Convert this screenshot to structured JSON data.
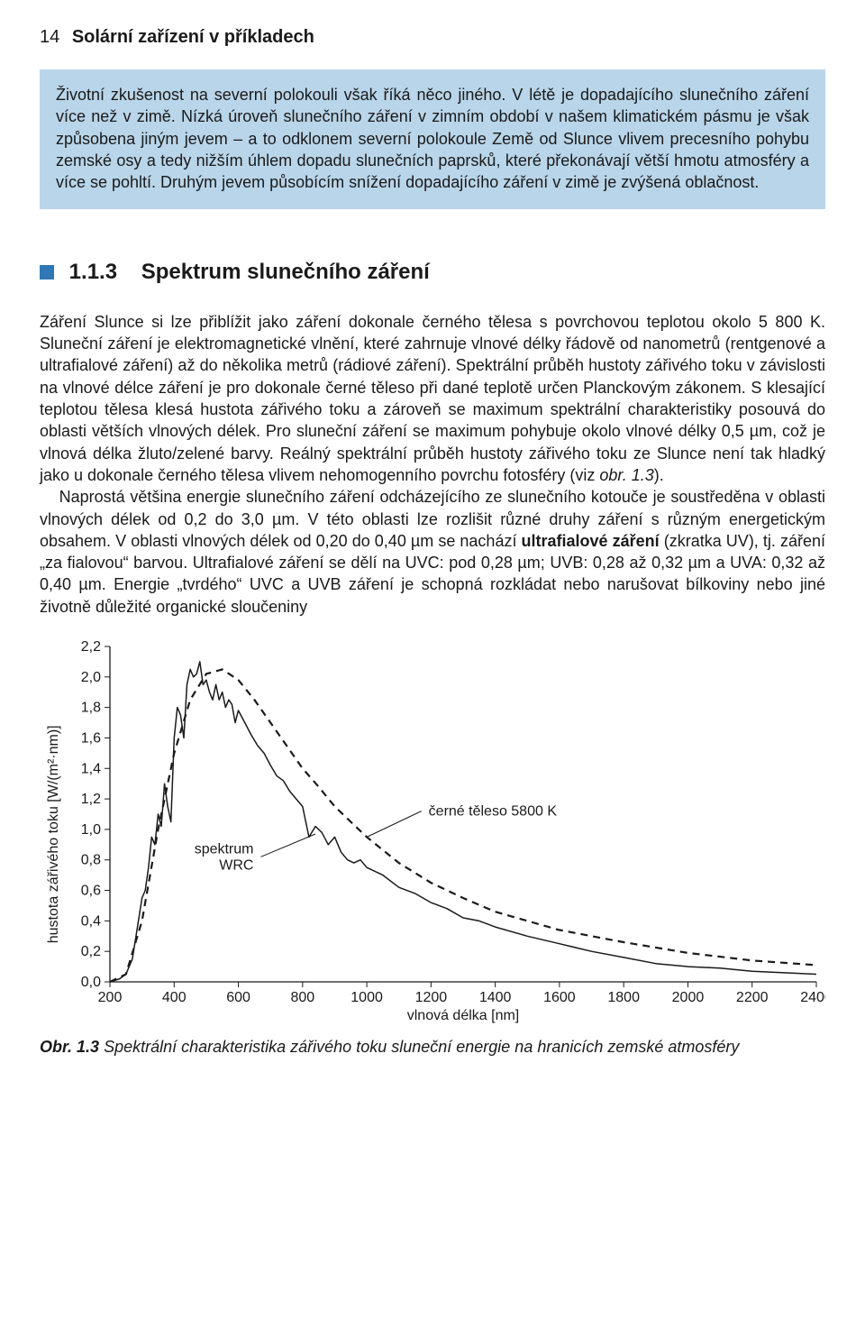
{
  "page": {
    "number": "14",
    "running_title": "Solární zařízení v příkladech"
  },
  "callout": {
    "text": "Životní zkušenost na severní polokouli však říká něco jiného. V létě je dopadajícího slunečního záření více než v zimě. Nízká úroveň slunečního záření v zimním období v našem klimatickém pásmu je však způsobena jiným jevem – a to odklonem severní polokoule Země od Slunce vlivem precesního pohybu zemské osy a tedy nižším úhlem dopadu slunečních paprsků, které překonávají větší hmotu atmosféry a více se pohltí. Druhým jevem působícím snížení dopadajícího záření v zimě je zvýšená oblačnost."
  },
  "section": {
    "number": "1.1.3",
    "title": "Spektrum slunečního záření"
  },
  "body": {
    "p1": "Záření Slunce si lze přiblížit jako záření dokonale černého tělesa s povrchovou teplotou okolo 5 800 K. Sluneční záření je elektromagnetické vlnění, které zahrnuje vlnové délky řádově od nanometrů (rentgenové a ultrafialové záření) až do několika metrů (rádiové záření). Spektrální průběh hustoty zářivého toku v závislosti na vlnové délce záření je pro dokonale černé těleso při dané teplotě určen Planckovým zákonem. S klesající teplotou tělesa klesá hustota zářivého toku a zároveň se maximum spektrální charakteristiky posouvá do oblasti větších vlnových délek. Pro sluneční záření se maximum pohybuje okolo vlnové délky 0,5 µm, což je vlnová délka žluto/zelené barvy. Reálný spektrální průběh hustoty zářivého toku ze Slunce není tak hladký jako u dokonale černého tělesa vlivem nehomogenního povrchu fotosféry (viz ",
    "figref": "obr. 1.3",
    "p1_after": ").",
    "p2_a": "Naprostá většina energie slunečního záření odcházejícího ze slunečního kotouče je soustředěna v oblasti vlnových délek od 0,2 do 3,0 µm. V této oblasti lze rozlišit různé druhy záření s různým energetickým obsahem. V oblasti vlnových délek od 0,20 do 0,40 µm se nachází ",
    "term1": "ultrafialové záření",
    "p2_b": " (zkratka UV), tj. záření „za fialovou“ barvou. Ultrafialové záření se dělí na UVC: pod 0,28 µm; UVB: 0,28 až 0,32 µm a UVA: 0,32 až 0,40 µm. Energie „tvrdého“ UVC a UVB záření je schopná rozkládat nebo narušovat bílkoviny nebo jiné životně důležité organické sloučeniny"
  },
  "figure": {
    "y_title": "hustota zářivého toku [W/(m²·nm)]",
    "x_title": "vlnová délka [nm]",
    "y_ticks": [
      "0,0",
      "0,2",
      "0,4",
      "0,6",
      "0,8",
      "1,0",
      "1,2",
      "1,4",
      "1,6",
      "1,8",
      "2,0",
      "2,2"
    ],
    "x_ticks": [
      "200",
      "400",
      "600",
      "800",
      "1000",
      "1200",
      "1400",
      "1600",
      "1800",
      "2000",
      "2200",
      "2400"
    ],
    "annot_blackbody": "černé těleso 5800 K",
    "annot_wrc": "spektrum\nWRC",
    "caption_label": "Obr. 1.3",
    "caption_text": "Spektrální charakteristika zářivého toku sluneční energie na hranicích zemské atmosféry",
    "styling": {
      "type": "line",
      "xlim": [
        200,
        2400
      ],
      "ylim": [
        0.0,
        2.2
      ],
      "xtick_step": 200,
      "ytick_step": 0.2,
      "background_color": "#ffffff",
      "axis_color": "#1a1a1a",
      "tick_fontsize": 16,
      "ylabel_fontsize": 16,
      "xlabel_fontsize": 16,
      "annot_fontsize": 16,
      "series": {
        "blackbody": {
          "color": "#1a1a1a",
          "dash": "8 6",
          "width": 2.2
        },
        "wrc": {
          "color": "#1a1a1a",
          "dash": "none",
          "width": 1.5
        }
      },
      "blackbody_points_nm_W": [
        [
          200,
          0.0
        ],
        [
          250,
          0.05
        ],
        [
          300,
          0.4
        ],
        [
          350,
          1.0
        ],
        [
          400,
          1.5
        ],
        [
          450,
          1.85
        ],
        [
          500,
          2.02
        ],
        [
          550,
          2.05
        ],
        [
          600,
          1.98
        ],
        [
          650,
          1.85
        ],
        [
          700,
          1.7
        ],
        [
          750,
          1.55
        ],
        [
          800,
          1.4
        ],
        [
          850,
          1.28
        ],
        [
          900,
          1.15
        ],
        [
          950,
          1.05
        ],
        [
          1000,
          0.95
        ],
        [
          1100,
          0.78
        ],
        [
          1200,
          0.65
        ],
        [
          1300,
          0.55
        ],
        [
          1400,
          0.46
        ],
        [
          1500,
          0.4
        ],
        [
          1600,
          0.34
        ],
        [
          1800,
          0.26
        ],
        [
          2000,
          0.19
        ],
        [
          2200,
          0.14
        ],
        [
          2400,
          0.11
        ]
      ],
      "wrc_points_nm_W": [
        [
          200,
          0.0
        ],
        [
          230,
          0.02
        ],
        [
          250,
          0.05
        ],
        [
          270,
          0.15
        ],
        [
          285,
          0.35
        ],
        [
          300,
          0.55
        ],
        [
          310,
          0.6
        ],
        [
          320,
          0.75
        ],
        [
          330,
          0.95
        ],
        [
          340,
          0.9
        ],
        [
          350,
          1.1
        ],
        [
          360,
          1.02
        ],
        [
          370,
          1.3
        ],
        [
          380,
          1.15
        ],
        [
          390,
          1.05
        ],
        [
          400,
          1.6
        ],
        [
          410,
          1.8
        ],
        [
          420,
          1.75
        ],
        [
          430,
          1.6
        ],
        [
          440,
          1.95
        ],
        [
          450,
          2.05
        ],
        [
          460,
          2.0
        ],
        [
          470,
          2.02
        ],
        [
          480,
          2.1
        ],
        [
          490,
          1.95
        ],
        [
          500,
          1.98
        ],
        [
          510,
          1.9
        ],
        [
          520,
          1.85
        ],
        [
          530,
          1.95
        ],
        [
          540,
          1.85
        ],
        [
          550,
          1.9
        ],
        [
          560,
          1.8
        ],
        [
          570,
          1.85
        ],
        [
          580,
          1.82
        ],
        [
          590,
          1.7
        ],
        [
          600,
          1.78
        ],
        [
          620,
          1.7
        ],
        [
          640,
          1.62
        ],
        [
          660,
          1.55
        ],
        [
          680,
          1.5
        ],
        [
          700,
          1.42
        ],
        [
          720,
          1.35
        ],
        [
          740,
          1.32
        ],
        [
          760,
          1.25
        ],
        [
          780,
          1.2
        ],
        [
          800,
          1.15
        ],
        [
          820,
          0.95
        ],
        [
          840,
          1.02
        ],
        [
          860,
          0.98
        ],
        [
          880,
          0.9
        ],
        [
          900,
          0.95
        ],
        [
          920,
          0.85
        ],
        [
          940,
          0.8
        ],
        [
          960,
          0.78
        ],
        [
          980,
          0.8
        ],
        [
          1000,
          0.75
        ],
        [
          1050,
          0.7
        ],
        [
          1100,
          0.62
        ],
        [
          1150,
          0.58
        ],
        [
          1200,
          0.52
        ],
        [
          1250,
          0.48
        ],
        [
          1300,
          0.42
        ],
        [
          1350,
          0.4
        ],
        [
          1400,
          0.36
        ],
        [
          1500,
          0.3
        ],
        [
          1600,
          0.25
        ],
        [
          1700,
          0.2
        ],
        [
          1800,
          0.16
        ],
        [
          1900,
          0.12
        ],
        [
          2000,
          0.1
        ],
        [
          2100,
          0.09
        ],
        [
          2200,
          0.07
        ],
        [
          2300,
          0.06
        ],
        [
          2400,
          0.05
        ]
      ]
    }
  }
}
